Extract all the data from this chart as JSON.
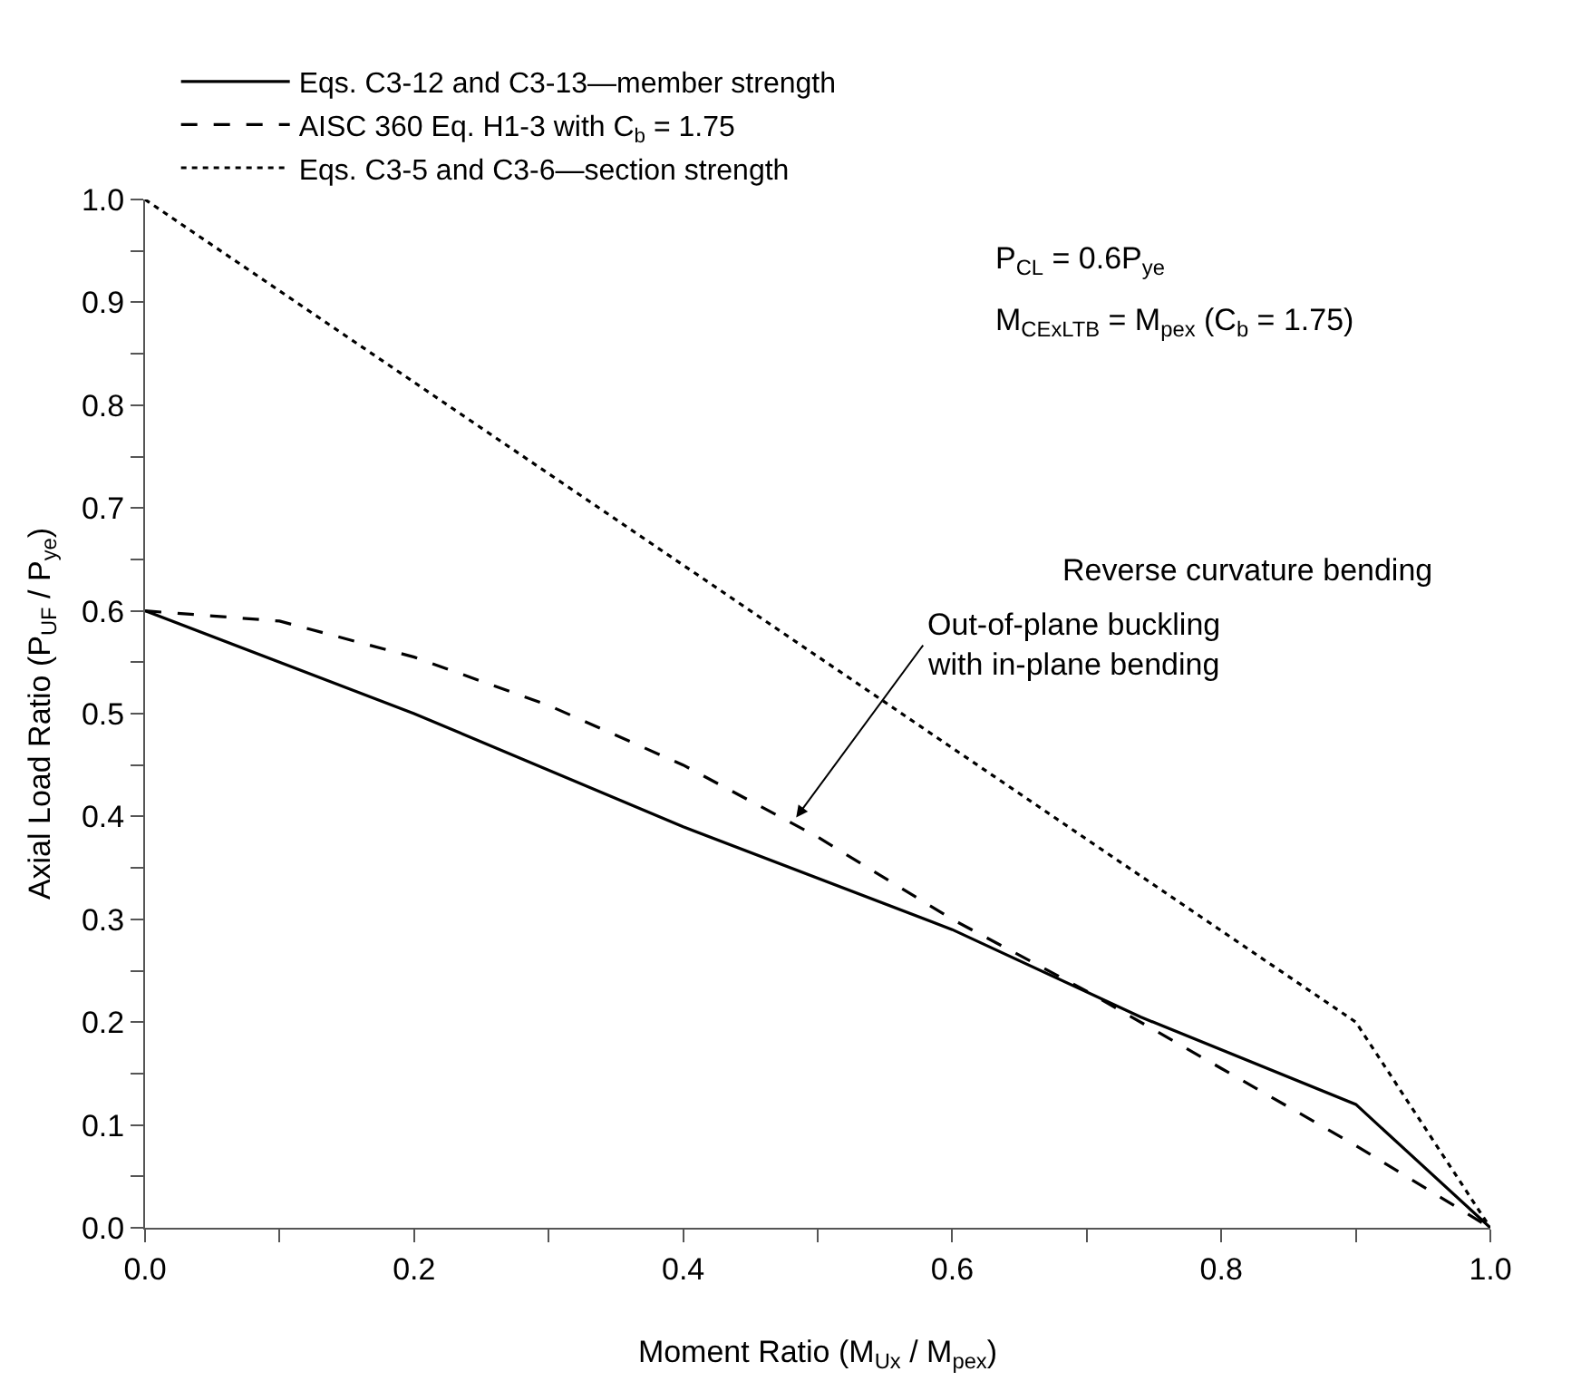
{
  "chart_data": {
    "type": "line",
    "xlabel": "Moment Ratio (M$_{Ux}$ / M$_{pex}$)",
    "ylabel": "Axial Load Ratio (P$_{UF}$ / P$_{ye}$)",
    "series": [
      {
        "name": "Eqs. C3-12 and C3-13—member strength",
        "color": "#000000",
        "line_style": "solid",
        "x": [
          0,
          0.2,
          0.4,
          0.6,
          0.74,
          0.9,
          1.0
        ],
        "values": [
          0.6,
          0.5,
          0.39,
          0.29,
          0.205,
          0.12,
          0.0
        ]
      },
      {
        "name": "AISC 360 Eq. H1-3 with C$_{b}$ = 1.75",
        "color": "#000000",
        "line_style": "dashed",
        "x": [
          0,
          0.1,
          0.2,
          0.3,
          0.4,
          0.5,
          0.6,
          0.7,
          0.8,
          0.9,
          1.0
        ],
        "values": [
          0.6,
          0.59,
          0.555,
          0.508,
          0.45,
          0.38,
          0.3,
          0.23,
          0.155,
          0.08,
          0.0
        ]
      },
      {
        "name": "Eqs. C3-5 and C3-6—section strength",
        "color": "#000000",
        "line_style": "dotted",
        "x": [
          0,
          0.9,
          1.0
        ],
        "values": [
          1.0,
          0.2,
          0.0
        ]
      }
    ],
    "xlim": [
      0,
      1
    ],
    "ylim": [
      0,
      1
    ],
    "xticks": [
      {
        "value": 0,
        "label": "0.0"
      },
      {
        "value": 0.1,
        "label": null
      },
      0.2,
      {
        "value": 0.3,
        "label": null
      },
      0.4,
      {
        "value": 0.5,
        "label": null
      },
      0.6,
      {
        "value": 0.7,
        "label": null
      },
      0.8,
      {
        "value": 0.9,
        "label": null
      },
      {
        "value": 1,
        "label": "1.0"
      }
    ],
    "yticks": [
      {
        "value": 0,
        "label": "0.0"
      },
      {
        "value": 0.05,
        "label": null
      },
      0.1,
      {
        "value": 0.15,
        "label": null
      },
      0.2,
      {
        "value": 0.25,
        "label": null
      },
      0.3,
      {
        "value": 0.35,
        "label": null
      },
      0.4,
      {
        "value": 0.45,
        "label": null
      },
      0.5,
      {
        "value": 0.55,
        "label": null
      },
      0.6,
      {
        "value": 0.65,
        "label": null
      },
      0.7,
      {
        "value": 0.75,
        "label": null
      },
      0.8,
      {
        "value": 0.85,
        "label": null
      },
      0.9,
      {
        "value": 0.95,
        "label": null
      },
      {
        "value": 1,
        "label": "1.0"
      }
    ],
    "annotations": [
      "P$_{CL}$ = 0.6P$_{ye}$",
      "M$_{CExLTB}$ = M$_{pex}$ (C$_{b}$ = 1.75)",
      "Reverse curvature bending",
      {
        "text": "Out-of-plane buckling with in-plane bending",
        "x": 0.484,
        "y": 0.399
      }
    ],
    "legend": "top",
    "marker": "none"
  }
}
